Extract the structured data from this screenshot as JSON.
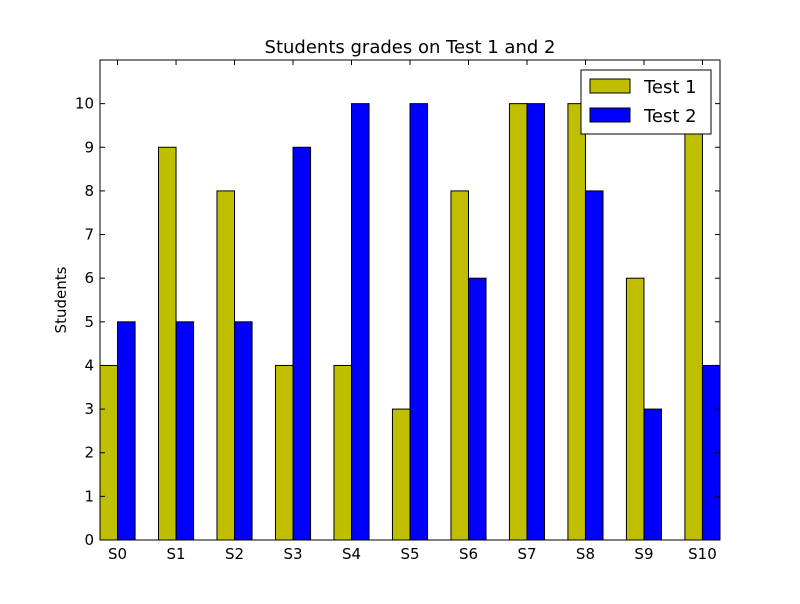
{
  "chart_data": {
    "type": "bar",
    "title": "Students grades on Test 1 and 2",
    "xlabel": "",
    "ylabel": "Students",
    "categories": [
      "S0",
      "S1",
      "S2",
      "S3",
      "S4",
      "S5",
      "S6",
      "S7",
      "S8",
      "S9",
      "S10"
    ],
    "series": [
      {
        "name": "Test 1",
        "color": "#bfbf00",
        "values": [
          4,
          9,
          8,
          4,
          4,
          3,
          8,
          10,
          10,
          6,
          10
        ]
      },
      {
        "name": "Test 2",
        "color": "#0000ff",
        "values": [
          5,
          5,
          5,
          9,
          10,
          10,
          6,
          10,
          8,
          3,
          4
        ]
      }
    ],
    "ylim": [
      0,
      11
    ],
    "yticks": [
      0,
      1,
      2,
      3,
      4,
      5,
      6,
      7,
      8,
      9,
      10
    ],
    "grid": false,
    "legend_position": "top-right"
  }
}
